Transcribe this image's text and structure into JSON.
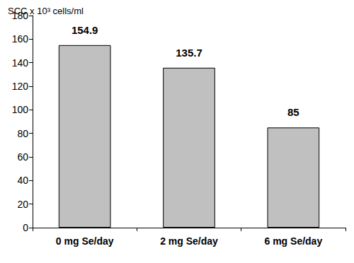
{
  "chart_data": {
    "type": "bar",
    "ylabel": "SCC x 10³ cells/ml",
    "categories": [
      "0 mg Se/day",
      "2 mg Se/day",
      "6 mg Se/day"
    ],
    "values": [
      154.9,
      135.7,
      85
    ],
    "color": "#c0c0c0",
    "ylim": [
      0,
      180
    ],
    "yticks": [
      0,
      20,
      40,
      60,
      80,
      100,
      120,
      140,
      160,
      180
    ],
    "grid": false,
    "data_labels": true
  }
}
